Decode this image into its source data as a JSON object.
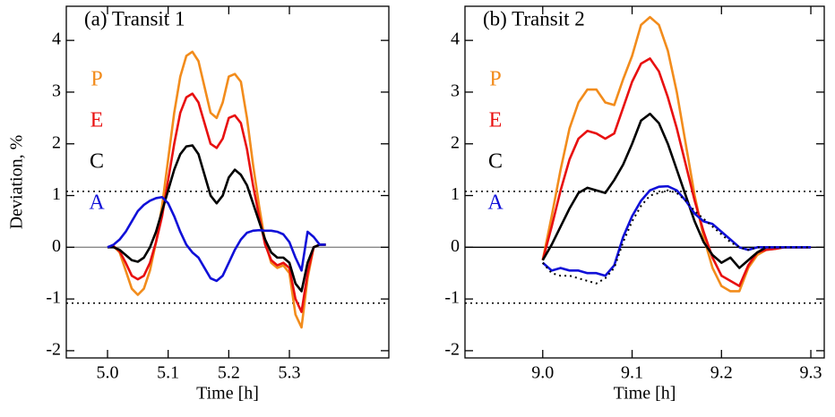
{
  "chart_data": [
    {
      "type": "line",
      "title": "(a) Transit 1",
      "xlabel": "Time [h]",
      "ylabel": "Deviation, %",
      "xlim": [
        4.932,
        5.464
      ],
      "ylim": [
        -2.14,
        4.66
      ],
      "xticks": [
        {
          "value": 5.0,
          "label": "5.0"
        },
        5.1,
        5.2,
        5.3
      ],
      "yticks": [
        -2,
        -1,
        0,
        1,
        2,
        3,
        4
      ],
      "hlines": [
        1.08,
        -1.08
      ],
      "hline_style": "dotted",
      "zero_line_color": "#888888",
      "legend": "upper left",
      "x": [
        5.0,
        5.01,
        5.02,
        5.03,
        5.04,
        5.05,
        5.06,
        5.07,
        5.08,
        5.09,
        5.1,
        5.11,
        5.12,
        5.13,
        5.14,
        5.15,
        5.16,
        5.17,
        5.18,
        5.19,
        5.2,
        5.21,
        5.22,
        5.23,
        5.24,
        5.25,
        5.26,
        5.27,
        5.28,
        5.29,
        5.3,
        5.31,
        5.32,
        5.33,
        5.34,
        5.35,
        5.36
      ],
      "series": [
        {
          "name": "P",
          "color": "#f28c1c",
          "values": [
            0,
            0.02,
            -0.1,
            -0.45,
            -0.8,
            -0.92,
            -0.8,
            -0.45,
            0.1,
            0.8,
            1.7,
            2.6,
            3.3,
            3.7,
            3.78,
            3.6,
            3.1,
            2.6,
            2.5,
            2.8,
            3.3,
            3.35,
            3.2,
            2.5,
            1.6,
            0.8,
            0.1,
            -0.3,
            -0.4,
            -0.35,
            -0.5,
            -1.3,
            -1.55,
            -0.6,
            0.0,
            0.05,
            0.05
          ]
        },
        {
          "name": "E",
          "color": "#e81010",
          "values": [
            0,
            0.02,
            -0.08,
            -0.3,
            -0.55,
            -0.62,
            -0.55,
            -0.3,
            0.1,
            0.6,
            1.3,
            2.0,
            2.6,
            2.9,
            2.97,
            2.8,
            2.4,
            2.0,
            1.92,
            2.1,
            2.5,
            2.55,
            2.4,
            1.9,
            1.2,
            0.6,
            0.05,
            -0.25,
            -0.35,
            -0.3,
            -0.4,
            -1.0,
            -1.25,
            -0.5,
            0.0,
            0.05,
            0.05
          ]
        },
        {
          "name": "C",
          "color": "#000000",
          "values": [
            0,
            0,
            -0.05,
            -0.15,
            -0.25,
            -0.28,
            -0.2,
            0.0,
            0.3,
            0.7,
            1.1,
            1.5,
            1.8,
            1.95,
            1.97,
            1.8,
            1.4,
            1.0,
            0.85,
            1.0,
            1.35,
            1.5,
            1.4,
            1.2,
            0.85,
            0.5,
            0.15,
            -0.1,
            -0.2,
            -0.2,
            -0.3,
            -0.7,
            -0.85,
            -0.3,
            0.0,
            0.05,
            0.05
          ]
        },
        {
          "name": "A",
          "color": "#1010d8",
          "values": [
            0,
            0.05,
            0.15,
            0.3,
            0.5,
            0.7,
            0.82,
            0.9,
            0.95,
            0.97,
            0.85,
            0.6,
            0.3,
            0.05,
            -0.1,
            -0.2,
            -0.4,
            -0.6,
            -0.65,
            -0.55,
            -0.3,
            -0.05,
            0.15,
            0.28,
            0.32,
            0.33,
            0.32,
            0.32,
            0.3,
            0.25,
            0.1,
            -0.2,
            -0.45,
            0.3,
            0.2,
            0.05,
            0.05
          ]
        }
      ]
    },
    {
      "type": "line",
      "title": "(b) Transit 2",
      "xlabel": "Time [h]",
      "xlim": [
        8.913,
        9.315
      ],
      "ylim": [
        -2.14,
        4.66
      ],
      "xticks": [
        {
          "value": 9.0,
          "label": "9.0"
        },
        9.1,
        9.2,
        9.3
      ],
      "yticks": [
        -2,
        -1,
        0,
        1,
        2,
        3,
        4
      ],
      "hlines": [
        1.08,
        -1.08
      ],
      "hline_style": "dotted",
      "zero_line_color": "#000000",
      "legend": "upper left",
      "x": [
        9.0,
        9.01,
        9.02,
        9.03,
        9.04,
        9.05,
        9.06,
        9.07,
        9.08,
        9.09,
        9.1,
        9.11,
        9.12,
        9.13,
        9.14,
        9.15,
        9.16,
        9.17,
        9.18,
        9.19,
        9.2,
        9.21,
        9.22,
        9.23,
        9.24,
        9.25,
        9.26,
        9.27,
        9.28,
        9.29,
        9.3
      ],
      "series": [
        {
          "name": "P",
          "color": "#f28c1c",
          "values": [
            -0.25,
            0.6,
            1.5,
            2.3,
            2.8,
            3.05,
            3.05,
            2.8,
            2.75,
            3.25,
            3.7,
            4.3,
            4.45,
            4.3,
            3.8,
            3.0,
            2.0,
            1.0,
            0.2,
            -0.4,
            -0.75,
            -0.85,
            -0.85,
            -0.4,
            -0.15,
            -0.05,
            -0.03,
            0,
            0,
            0,
            0
          ]
        },
        {
          "name": "E",
          "color": "#e81010",
          "values": [
            -0.25,
            0.4,
            1.1,
            1.7,
            2.1,
            2.25,
            2.2,
            2.1,
            2.2,
            2.7,
            3.2,
            3.55,
            3.65,
            3.4,
            2.9,
            2.3,
            1.6,
            0.9,
            0.3,
            -0.2,
            -0.55,
            -0.65,
            -0.75,
            -0.35,
            -0.1,
            -0.05,
            -0.03,
            0,
            0,
            0,
            0
          ]
        },
        {
          "name": "C",
          "color": "#000000",
          "values": [
            -0.25,
            0.05,
            0.4,
            0.75,
            1.05,
            1.15,
            1.1,
            1.05,
            1.3,
            1.6,
            2.0,
            2.45,
            2.58,
            2.4,
            2.0,
            1.5,
            1.0,
            0.5,
            0.1,
            -0.15,
            -0.3,
            -0.2,
            -0.4,
            -0.25,
            -0.1,
            0,
            0,
            0,
            0,
            0,
            0
          ]
        },
        {
          "name": "A",
          "color": "#1010d8",
          "values": [
            -0.3,
            -0.45,
            -0.4,
            -0.45,
            -0.45,
            -0.5,
            -0.5,
            -0.55,
            -0.35,
            0.2,
            0.6,
            0.9,
            1.1,
            1.17,
            1.18,
            1.1,
            0.9,
            0.65,
            0.5,
            0.45,
            0.3,
            0.15,
            0.0,
            -0.05,
            0,
            0,
            0,
            0,
            0,
            0,
            0
          ]
        },
        {
          "color": "#000000",
          "dash": "dotted",
          "values": [
            -0.3,
            -0.5,
            -0.55,
            -0.55,
            -0.6,
            -0.65,
            -0.7,
            -0.6,
            -0.4,
            0.1,
            0.5,
            0.8,
            1.0,
            1.05,
            1.1,
            1.05,
            0.9,
            0.7,
            0.55,
            0.4,
            0.25,
            0.1,
            0.0,
            -0.05,
            0,
            0,
            0,
            0,
            0,
            0,
            0
          ]
        }
      ]
    }
  ]
}
